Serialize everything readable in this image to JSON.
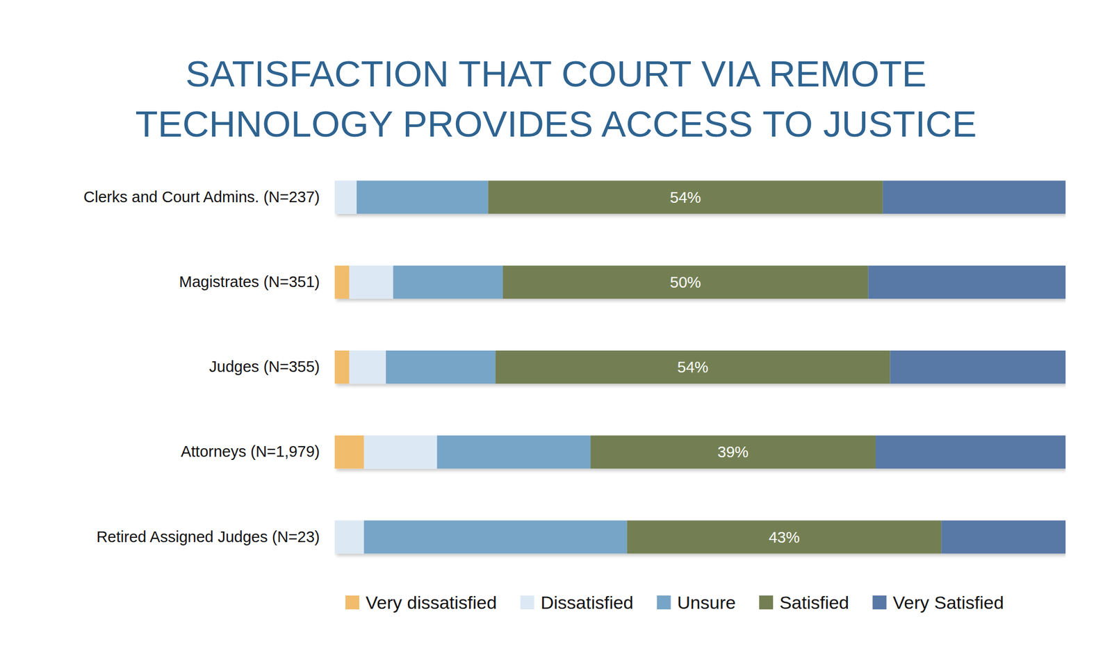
{
  "chart_data": {
    "type": "bar",
    "title": "SATISFACTION THAT COURT VIA REMOTE TECHNOLOGY PROVIDES ACCESS TO JUSTICE",
    "orientation": "horizontal",
    "stacked": true,
    "legend": "bottom",
    "tick_labels": "y",
    "xlim": [
      0,
      100
    ],
    "categories": [
      "Clerks and Court Admins. (N=237)",
      "Magistrates (N=351)",
      "Judges (N=355)",
      "Attorneys (N=1,979)",
      "Retired Assigned Judges (N=23)"
    ],
    "series": [
      {
        "name": "Very dissatisfied",
        "color": "#f1bc6c",
        "values": [
          0,
          2,
          2,
          4,
          0
        ]
      },
      {
        "name": "Dissatisfied",
        "color": "#dce9f5",
        "values": [
          3,
          6,
          5,
          10,
          4
        ]
      },
      {
        "name": "Unsure",
        "color": "#77a5c7",
        "values": [
          18,
          15,
          15,
          21,
          36
        ]
      },
      {
        "name": "Satisfied",
        "color": "#737f52",
        "values": [
          54,
          50,
          54,
          39,
          43
        ],
        "data_labels": true,
        "value_labels": [
          "54%",
          "50%",
          "54%",
          "39%",
          "43%"
        ]
      },
      {
        "name": "Very Satisfied",
        "color": "#5878a6",
        "values": [
          25,
          27,
          24,
          26,
          17
        ]
      }
    ]
  }
}
